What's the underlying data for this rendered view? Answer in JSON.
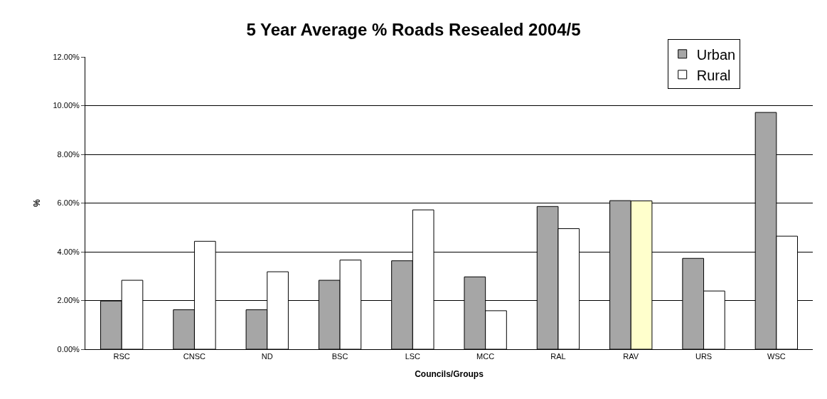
{
  "chart_data": {
    "type": "bar",
    "title": "5 Year Average % Roads Resealed 2004/5",
    "xlabel": "Councils/Groups",
    "ylabel": "%",
    "categories": [
      "RSC",
      "CNSC",
      "ND",
      "BSC",
      "LSC",
      "MCC",
      "RAL",
      "RAV",
      "URS",
      "WSC"
    ],
    "series": [
      {
        "name": "Urban",
        "color": "#a6a6a6",
        "values": [
          1.98,
          1.62,
          1.62,
          2.83,
          3.63,
          2.97,
          5.86,
          6.1,
          3.73,
          9.72
        ]
      },
      {
        "name": "Rural",
        "color": "#ffffff",
        "colors": [
          "#ffffff",
          "#ffffff",
          "#ffffff",
          "#ffffff",
          "#ffffff",
          "#ffffff",
          "#ffffff",
          "#ffffcc",
          "#ffffff",
          "#ffffff"
        ],
        "values": [
          2.83,
          4.43,
          3.18,
          3.66,
          5.72,
          1.58,
          4.95,
          6.09,
          2.39,
          4.64
        ]
      }
    ],
    "ylim": [
      0,
      12
    ],
    "yticks": [
      {
        "value": 0,
        "label": "0.00%"
      },
      {
        "value": 2,
        "label": "2.00%"
      },
      {
        "value": 4,
        "label": "4.00%"
      },
      {
        "value": 6,
        "label": "6.00%"
      },
      {
        "value": 8,
        "label": "8.00%"
      },
      {
        "value": 10,
        "label": "10.00%"
      },
      {
        "value": 12,
        "label": "12.00%"
      }
    ],
    "grid": "y",
    "legend": "top right"
  }
}
